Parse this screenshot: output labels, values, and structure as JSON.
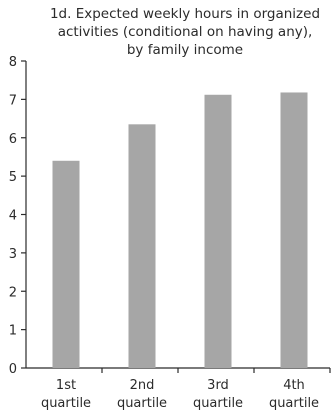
{
  "chart_data": {
    "type": "bar",
    "title_lines": [
      "1d.  Expected weekly hours in organized",
      "activities (conditional on having any),",
      "by family income"
    ],
    "xlabel": "",
    "ylabel": "",
    "categories": [
      [
        "1st",
        "quartile"
      ],
      [
        "2nd",
        "quartile"
      ],
      [
        "3rd",
        "quartile"
      ],
      [
        "4th",
        "quartile"
      ]
    ],
    "values": [
      5.4,
      6.35,
      7.12,
      7.18
    ],
    "ylim": [
      0,
      8
    ],
    "yticks": [
      "0",
      "1",
      "2",
      "3",
      "4",
      "5",
      "6",
      "7",
      "8"
    ],
    "grid": false,
    "legend": "none",
    "colors": {
      "bar": "#a6a6a6",
      "axis": "#2b2b2b",
      "text": "#2b2b2b"
    }
  }
}
